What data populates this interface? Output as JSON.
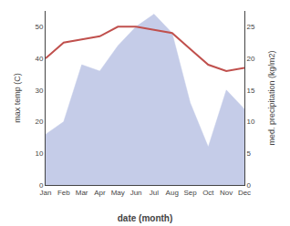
{
  "chart_data": {
    "type": "line",
    "xlabel": "date (month)",
    "ylabel": "max temp (C)",
    "y2label": "med. precipitation (kg/m2)",
    "categories": [
      "Jan",
      "Feb",
      "Mar",
      "Apr",
      "May",
      "Jun",
      "Jul",
      "Aug",
      "Sep",
      "Oct",
      "Nov",
      "Dec"
    ],
    "series": [
      {
        "type": "area",
        "axis": "y2",
        "color": "#c5cce8",
        "values": [
          8,
          10,
          19,
          18,
          22,
          25,
          27,
          24,
          13,
          6,
          15,
          12
        ]
      },
      {
        "type": "line",
        "color": "#c0504d",
        "values": [
          40,
          45,
          46,
          47,
          50,
          50,
          49,
          48,
          43,
          38,
          36,
          37
        ]
      }
    ],
    "ylim": [
      0,
      55
    ],
    "yticks": [
      0,
      10,
      20,
      30,
      40,
      50
    ],
    "y2lim": [
      0,
      27.5
    ],
    "y2ticks": [
      0,
      5,
      10,
      15,
      20,
      25
    ],
    "grid": false
  }
}
